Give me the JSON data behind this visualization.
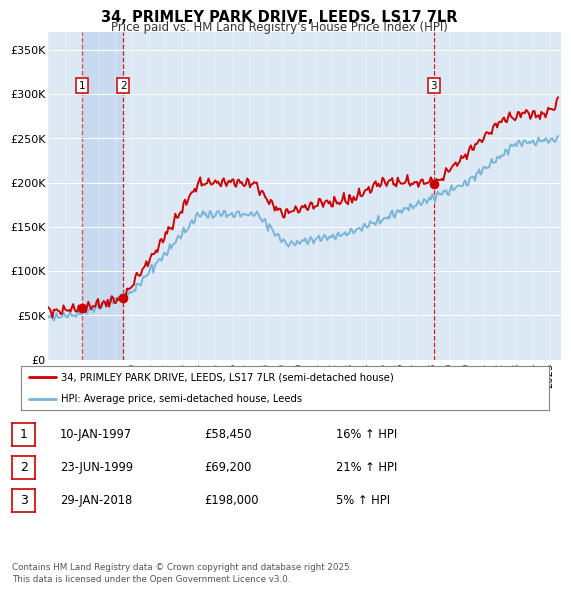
{
  "title": "34, PRIMLEY PARK DRIVE, LEEDS, LS17 7LR",
  "subtitle": "Price paid vs. HM Land Registry's House Price Index (HPI)",
  "background_color": "#dce9f5",
  "plot_bg_color": "#dce9f5",
  "hpi_color": "#7ab4d8",
  "price_color": "#cc0000",
  "sale_marker_color": "#cc0000",
  "vline_color": "#cc0000",
  "shading_color": "#c5d8ee",
  "ylim": [
    0,
    370000
  ],
  "yticks": [
    0,
    50000,
    100000,
    150000,
    200000,
    250000,
    300000,
    350000
  ],
  "ytick_labels": [
    "£0",
    "£50K",
    "£100K",
    "£150K",
    "£200K",
    "£250K",
    "£300K",
    "£350K"
  ],
  "sales": [
    {
      "date_year": 1997.04,
      "price": 58450,
      "label": "1"
    },
    {
      "date_year": 1999.48,
      "price": 69200,
      "label": "2"
    },
    {
      "date_year": 2018.08,
      "price": 198000,
      "label": "3"
    }
  ],
  "legend_entries": [
    "34, PRIMLEY PARK DRIVE, LEEDS, LS17 7LR (semi-detached house)",
    "HPI: Average price, semi-detached house, Leeds"
  ],
  "table_rows": [
    {
      "num": "1",
      "date": "10-JAN-1997",
      "price": "£58,450",
      "change": "16% ↑ HPI"
    },
    {
      "num": "2",
      "date": "23-JUN-1999",
      "price": "£69,200",
      "change": "21% ↑ HPI"
    },
    {
      "num": "3",
      "date": "29-JAN-2018",
      "price": "£198,000",
      "change": "5% ↑ HPI"
    }
  ],
  "footnote": "Contains HM Land Registry data © Crown copyright and database right 2025.\nThis data is licensed under the Open Government Licence v3.0."
}
